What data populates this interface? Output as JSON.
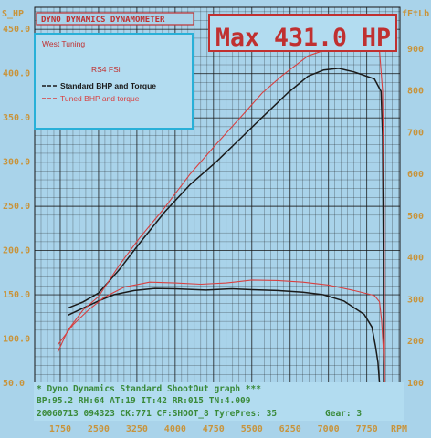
{
  "header": {
    "brand": "DYNO DYNAMICS DYNAMOMETER",
    "max": "Max 431.0 HP"
  },
  "legend": {
    "shop": "West Tuning",
    "car": "RS4 FSi",
    "std": "Standard BHP and Torque",
    "tuned": "Tuned BHP and torque"
  },
  "footer": {
    "line1": "* Dyno Dynamics Standard ShootOut graph ***",
    "line2": "BP:95.2  RH:64 AT:19 IT:42  RR:015 TN:4.009",
    "line3": "20060713 094323 CK:771 CF:SHOOT_8  TyrePres: 35",
    "gear": "Gear: 3",
    "rpm": "RPM"
  },
  "colors": {
    "std": "#1a1a1a",
    "tuned": "#d84040",
    "grid": "#161616",
    "panel": "#b2dcf0"
  },
  "chart_data": {
    "type": "line",
    "title": "Max 431.0 HP",
    "xlabel": "RPM",
    "ylabel_left": "S_HP",
    "ylabel_right": "fFtLb",
    "xlim": [
      1250,
      8400
    ],
    "ylim_left": [
      50,
      475
    ],
    "ylim_right": [
      100,
      1000
    ],
    "x_ticks": [
      1750,
      2500,
      3250,
      4000,
      4750,
      5500,
      6250,
      7000,
      7750
    ],
    "y_left_ticks": [
      "50.0",
      "100.0",
      "150.0",
      "200.0",
      "250.0",
      "300.0",
      "350.0",
      "400.0",
      "450.0"
    ],
    "y_right_ticks": [
      "100",
      "200",
      "300",
      "400",
      "500",
      "600",
      "700",
      "800",
      "900"
    ],
    "series": [
      {
        "name": "Standard BHP and Torque",
        "unit": "hp",
        "points": [
          [
            1900,
            135
          ],
          [
            2200,
            142
          ],
          [
            2500,
            152
          ],
          [
            2900,
            178
          ],
          [
            3300,
            208
          ],
          [
            3800,
            244
          ],
          [
            4300,
            275
          ],
          [
            4800,
            300
          ],
          [
            5300,
            328
          ],
          [
            5800,
            356
          ],
          [
            6200,
            378
          ],
          [
            6600,
            397
          ],
          [
            6900,
            404
          ],
          [
            7200,
            406
          ],
          [
            7500,
            402
          ],
          [
            7900,
            394
          ],
          [
            8030,
            380
          ],
          [
            8060,
            330
          ],
          [
            8075,
            200
          ],
          [
            8080,
            48
          ]
        ]
      },
      {
        "name": "Standard BHP and Torque",
        "unit": "torque",
        "points": [
          [
            1900,
            263
          ],
          [
            2200,
            280
          ],
          [
            2500,
            297
          ],
          [
            2800,
            312
          ],
          [
            3200,
            322
          ],
          [
            3600,
            327
          ],
          [
            4000,
            326
          ],
          [
            4600,
            323
          ],
          [
            5100,
            326
          ],
          [
            5500,
            324
          ],
          [
            6000,
            322
          ],
          [
            6500,
            318
          ],
          [
            6900,
            312
          ],
          [
            7300,
            297
          ],
          [
            7700,
            265
          ],
          [
            7850,
            235
          ],
          [
            7920,
            190
          ],
          [
            7970,
            150
          ],
          [
            8000,
            100
          ]
        ]
      },
      {
        "name": "Tuned BHP and torque",
        "unit": "hp",
        "points": [
          [
            1700,
            85
          ],
          [
            1900,
            110
          ],
          [
            2200,
            133
          ],
          [
            2500,
            148
          ],
          [
            2900,
            183
          ],
          [
            3300,
            214
          ],
          [
            3800,
            249
          ],
          [
            4300,
            287
          ],
          [
            4800,
            320
          ],
          [
            5300,
            352
          ],
          [
            5700,
            378
          ],
          [
            6100,
            398
          ],
          [
            6600,
            420
          ],
          [
            7000,
            428
          ],
          [
            7400,
            431
          ],
          [
            7800,
            430
          ],
          [
            8000,
            426
          ],
          [
            8060,
            380
          ],
          [
            8090,
            250
          ],
          [
            8100,
            50
          ]
        ]
      },
      {
        "name": "Tuned BHP and torque",
        "unit": "torque",
        "points": [
          [
            1700,
            192
          ],
          [
            2000,
            240
          ],
          [
            2300,
            275
          ],
          [
            2600,
            305
          ],
          [
            3000,
            330
          ],
          [
            3500,
            342
          ],
          [
            4000,
            340
          ],
          [
            4500,
            337
          ],
          [
            5000,
            340
          ],
          [
            5500,
            347
          ],
          [
            6000,
            346
          ],
          [
            6500,
            342
          ],
          [
            7000,
            335
          ],
          [
            7500,
            322
          ],
          [
            7900,
            310
          ],
          [
            8000,
            295
          ],
          [
            8040,
            250
          ],
          [
            8080,
            170
          ],
          [
            8100,
            100
          ]
        ]
      }
    ]
  }
}
